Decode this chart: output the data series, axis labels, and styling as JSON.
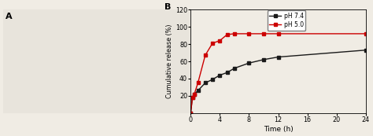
{
  "title_b": "B",
  "xlabel": "Time (h)",
  "ylabel": "Cumulative release (%)",
  "ylim": [
    0,
    120
  ],
  "xlim": [
    0,
    24
  ],
  "yticks": [
    20,
    40,
    60,
    80,
    100,
    120
  ],
  "xticks": [
    0,
    4,
    8,
    12,
    16,
    20,
    24
  ],
  "ph74": {
    "label": "pH 7.4",
    "color": "#1a1a1a",
    "x": [
      0,
      0.25,
      0.5,
      1,
      2,
      3,
      4,
      5,
      6,
      8,
      10,
      12,
      24
    ],
    "y": [
      0,
      18,
      22,
      26,
      35,
      39,
      44,
      47,
      52,
      58,
      62,
      65,
      73
    ]
  },
  "ph50": {
    "label": "pH 5.0",
    "color": "#cc0000",
    "x": [
      0,
      0.25,
      0.5,
      1,
      2,
      3,
      4,
      5,
      6,
      8,
      10,
      12,
      24
    ],
    "y": [
      0,
      18,
      22,
      35,
      67,
      81,
      84,
      91,
      92,
      92,
      92,
      92,
      92
    ]
  },
  "background_color": "#f0ece4",
  "plot_bg": "#f0ece4",
  "marker": "s",
  "markersize": 3,
  "linewidth": 1.0,
  "left_panel_color": "#e8e4dc"
}
